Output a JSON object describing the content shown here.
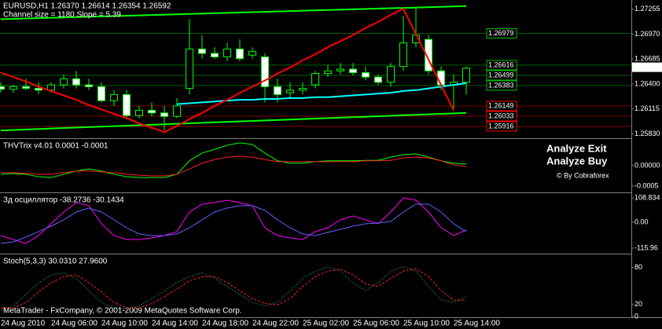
{
  "chart_data": [
    {
      "type": "candlestick",
      "title": "EURUSD,H1  1.26370 1.26614 1.26354 1.26592",
      "subtitle": "Channel size = 1180 Slope = 5.39",
      "categories": [
        "24 Aug 2010",
        null,
        null,
        null,
        "24 Aug 06:00",
        null,
        null,
        null,
        "24 Aug 10:00",
        null,
        null,
        null,
        "24 Aug 14:00",
        null,
        null,
        null,
        "24 Aug 18:00",
        null,
        null,
        null,
        "24 Aug 22:00",
        null,
        null,
        null,
        "25 Aug 02:00",
        null,
        null,
        null,
        "25 Aug 06:00",
        null,
        null,
        null,
        "25 Aug 10:00",
        null,
        null,
        null,
        "25 Aug 14:00",
        null
      ],
      "open": [
        1.2637,
        1.2634,
        1.2637,
        1.2635,
        1.2633,
        1.2639,
        1.2646,
        1.2639,
        1.2637,
        1.2621,
        1.2628,
        1.2604,
        1.261,
        1.2607,
        1.2603,
        1.2635,
        1.268,
        1.2675,
        1.2671,
        1.268,
        1.2673,
        1.2671,
        1.2637,
        1.263,
        1.2633,
        1.2639,
        1.2652,
        1.2655,
        1.2657,
        1.2653,
        1.2648,
        1.2642,
        1.266,
        1.2687,
        1.2691,
        1.2655,
        1.2639,
        1.2642
      ],
      "high": [
        1.2642,
        1.2639,
        1.2646,
        1.2642,
        1.2642,
        1.2651,
        1.2655,
        1.2646,
        1.2642,
        1.2633,
        1.2633,
        1.2615,
        1.2619,
        1.2615,
        1.2624,
        1.2714,
        1.2696,
        1.2682,
        1.2687,
        1.2691,
        1.2682,
        1.2675,
        1.2646,
        1.2642,
        1.2642,
        1.2655,
        1.2662,
        1.2664,
        1.2664,
        1.266,
        1.2651,
        1.2664,
        1.2718,
        1.2727,
        1.2696,
        1.266,
        1.2651,
        1.266
      ],
      "low": [
        1.263,
        1.263,
        1.2633,
        1.2628,
        1.263,
        1.2635,
        1.2635,
        1.2633,
        1.2619,
        1.2615,
        1.2601,
        1.2601,
        1.2603,
        1.2587,
        1.2601,
        1.2628,
        1.2669,
        1.2669,
        1.2666,
        1.2666,
        1.2669,
        1.2619,
        1.2619,
        1.2624,
        1.2628,
        1.2635,
        1.2648,
        1.2651,
        1.265,
        1.2644,
        1.2639,
        1.2637,
        1.2655,
        1.2682,
        1.2651,
        1.2633,
        1.261,
        1.2628
      ],
      "close": [
        1.2634,
        1.2637,
        1.2635,
        1.2633,
        1.2639,
        1.2646,
        1.2639,
        1.2637,
        1.2621,
        1.2628,
        1.2604,
        1.261,
        1.2607,
        1.2603,
        1.2615,
        1.268,
        1.2675,
        1.2671,
        1.268,
        1.2669,
        1.2677,
        1.2637,
        1.2628,
        1.2633,
        1.2635,
        1.2652,
        1.2655,
        1.2657,
        1.2653,
        1.2648,
        1.2642,
        1.266,
        1.2687,
        1.2696,
        1.2655,
        1.2639,
        1.2642,
        1.2658
      ],
      "bull_color": "#000000",
      "bear_color": "#ffffff",
      "wick_color": "#00ff00",
      "series": [
        {
          "color": "#00ffff",
          "values": [
            null,
            null,
            null,
            null,
            null,
            null,
            null,
            null,
            null,
            null,
            null,
            null,
            null,
            null,
            1.2617,
            1.2618,
            1.2619,
            1.262,
            1.2621,
            1.2622,
            1.2622,
            1.2623,
            1.2623,
            1.2624,
            1.2624,
            1.2625,
            1.2625,
            1.2626,
            1.2627,
            1.2628,
            1.2629,
            1.263,
            1.2632,
            1.2633,
            1.2635,
            1.2637,
            1.2639,
            1.2641
          ]
        },
        {
          "color": "#ff0000",
          "values": [
            1.2653,
            1.2648,
            1.2643,
            1.2637,
            1.2632,
            1.2627,
            1.2622,
            1.2616,
            1.2611,
            1.2606,
            1.2601,
            1.2595,
            1.259,
            1.2585,
            1.2592,
            1.26,
            1.2607,
            1.2615,
            1.2622,
            1.263,
            1.2637,
            1.2644,
            1.2652,
            1.2659,
            1.2667,
            1.2674,
            1.2682,
            1.2689,
            1.2696,
            1.2704,
            1.2711,
            1.2719,
            1.2726,
            1.2697,
            1.2668,
            1.2639,
            1.261,
            null
          ]
        }
      ],
      "trendlines": [
        {
          "color": "#00ff00",
          "values": [
            1.2714,
            1.2729
          ]
        },
        {
          "color": "#00ff00",
          "values": [
            1.2587,
            1.2607
          ]
        }
      ],
      "levels": [
        {
          "value": 1.26979,
          "color": "#00c000"
        },
        {
          "value": 1.26616,
          "color": "#00c000"
        },
        {
          "value": 1.26499,
          "color": "#00c000"
        },
        {
          "value": 1.26383,
          "color": "#00c000"
        },
        {
          "value": 1.26149,
          "color": "#ff0000"
        },
        {
          "value": 1.26033,
          "color": "#ff0000"
        },
        {
          "value": 1.25916,
          "color": "#ff0000"
        }
      ],
      "current_price": 1.26592,
      "ylim": [
        1.2579,
        1.2736
      ],
      "yticks": [
        1.27255,
        {
          "value": 1.2697,
          "label": "1.26970"
        },
        1.26685,
        {
          "value": 1.264,
          "label": "1.26400"
        },
        1.26115,
        {
          "value": 1.2583,
          "label": "1.25830"
        }
      ]
    },
    {
      "type": "line",
      "title": "THVTrix v4.01 0.0001 -0.0001",
      "series": [
        {
          "color": "#00ff00",
          "values": [
            -0.00021,
            -0.00019,
            -0.00021,
            -0.00027,
            -0.00029,
            -0.00021,
            -0.00013,
            -8e-05,
            -0.00013,
            -0.00021,
            -0.00027,
            -0.00029,
            -0.00029,
            -0.00029,
            -0.00021,
            0.00012,
            0.00031,
            0.0004,
            0.0005,
            0.00056,
            0.00052,
            0.00031,
            0.00012,
            6e-05,
            6e-05,
            0.0001,
            0.00012,
            0.00012,
            0.00012,
            0.00013,
            0.00013,
            0.00021,
            0.00027,
            0.00029,
            0.00021,
            0.00012,
            6e-05,
            4e-05
          ]
        },
        {
          "color": "#ff2020",
          "values": [
            -0.00017,
            -0.00017,
            -0.00019,
            -0.00021,
            -0.00021,
            -0.00017,
            -0.00013,
            -0.00013,
            -0.00015,
            -0.00017,
            -0.00021,
            -0.00023,
            -0.00025,
            -0.00025,
            -0.00021,
            -8e-05,
            6e-05,
            0.00015,
            0.00021,
            0.00023,
            0.00021,
            0.00015,
            0.0001,
            0.0001,
            0.0001,
            0.0001,
            0.0001,
            0.0001,
            0.0001,
            0.00012,
            0.00012,
            0.00013,
            0.00019,
            0.00021,
            0.00019,
            0.00012,
            2e-05,
            -2e-05
          ]
        }
      ],
      "annotations": [
        {
          "text": "Analyze Exit",
          "color": "#ffff00"
        },
        {
          "text": "Analyze Buy",
          "color": "#00ff00"
        },
        {
          "text": "© By Cobraforex",
          "color": "#00c000"
        }
      ],
      "ylim": [
        -0.000615,
        0.000635
      ],
      "yticks": [
        {
          "value": 0,
          "label": "0.00000"
        },
        -0.0005
      ]
    },
    {
      "type": "line",
      "title": "Зд осциллятор -38.2736 -30.1434",
      "series": [
        {
          "color": "#ff00ff",
          "values": [
            -59.7,
            -77.2,
            -94.8,
            -59.7,
            -7.0,
            45.6,
            87.8,
            73.7,
            -7.0,
            -59.7,
            -77.2,
            -77.2,
            -70.2,
            -59.7,
            -42.1,
            45.6,
            80.7,
            87.8,
            98.3,
            87.8,
            73.7,
            -24.6,
            -59.7,
            -70.2,
            -77.2,
            -42.1,
            -24.6,
            10.5,
            28.1,
            10.5,
            -7.0,
            45.6,
            108.8,
            98.3,
            45.6,
            -24.6,
            -59.7,
            -35.1
          ]
        },
        {
          "color": "#6060ff",
          "values": [
            -94.8,
            -87.8,
            -66.7,
            -42.1,
            -17.6,
            10.5,
            45.6,
            63.2,
            45.6,
            10.5,
            -24.6,
            -52.7,
            -59.7,
            -59.7,
            -52.7,
            -24.6,
            10.5,
            45.6,
            63.2,
            73.7,
            73.7,
            52.7,
            10.5,
            -24.6,
            -52.7,
            -59.7,
            -45.6,
            -31.6,
            -17.6,
            -7.0,
            -3.5,
            3.5,
            45.6,
            80.7,
            80.7,
            45.6,
            -7.0,
            -42.1
          ]
        }
      ],
      "ylim": [
        -130,
        126.4
      ],
      "yticks": [
        108.834,
        {
          "value": 0,
          "label": "0.00"
        },
        -115.96
      ]
    },
    {
      "type": "line",
      "title": "Stoch(5,3,3) 30.0310 27.9600",
      "series": [
        {
          "color": "#20b2aa",
          "dash": "1 2",
          "values": [
            10,
            17,
            36,
            55,
            68,
            71,
            62,
            42,
            23,
            14,
            13,
            17,
            29,
            42,
            55,
            65,
            71,
            62,
            49,
            36,
            23,
            17,
            23,
            42,
            62,
            74,
            81,
            74,
            55,
            42,
            55,
            74,
            81,
            74,
            49,
            27,
            23,
            32
          ]
        },
        {
          "color": "#ff2020",
          "dash": "3 2",
          "values": [
            14,
            14,
            23,
            40,
            55,
            65,
            68,
            55,
            40,
            23,
            14,
            14,
            21,
            32,
            45,
            58,
            65,
            65,
            55,
            42,
            29,
            21,
            19,
            29,
            49,
            65,
            74,
            77,
            68,
            53,
            49,
            62,
            74,
            78,
            65,
            42,
            27,
            26
          ]
        }
      ],
      "ylim": [
        0,
        100
      ],
      "yticks": [
        80,
        20,
        0
      ]
    }
  ],
  "footer": "MetaTrader - FxCompany, © 2001-2009 MetaQuotes Software Corp."
}
